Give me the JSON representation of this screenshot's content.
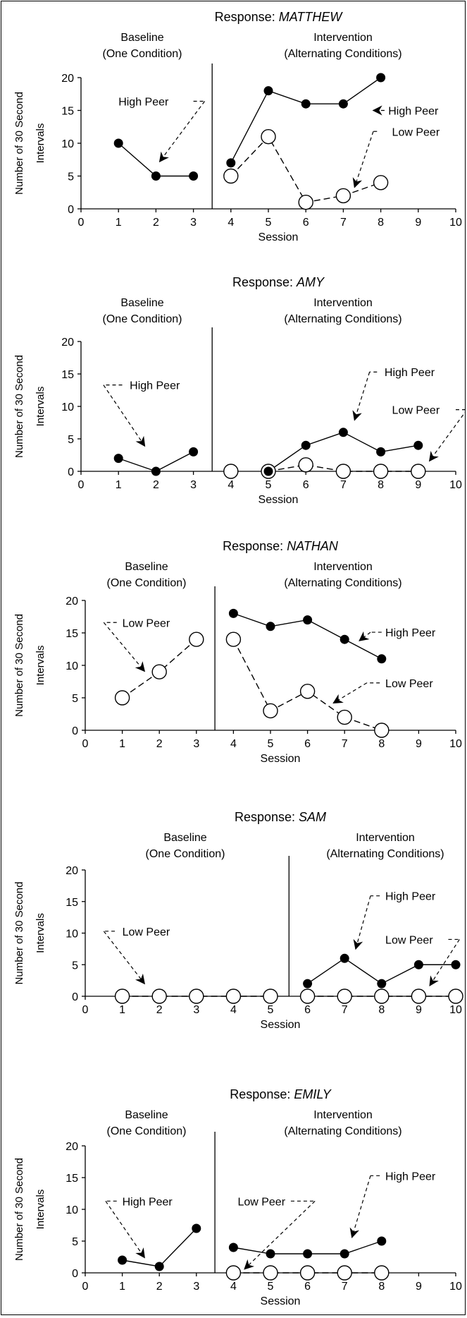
{
  "common": {
    "ylabel_line1": "Number of 30 Second",
    "ylabel_line2": "Intervals",
    "xlabel": "Session",
    "baseline_label": "Baseline",
    "baseline_sublabel": "(One Condition)",
    "intervention_label": "Intervention",
    "intervention_sublabel": "(Alternating Conditions)",
    "response_prefix": "Response: ",
    "y_ticks": [
      0,
      5,
      10,
      15,
      20
    ],
    "x_ticks": [
      "0",
      "1",
      "2",
      "3",
      "4",
      "5",
      "6",
      "7",
      "8",
      "9",
      "10"
    ],
    "ylim": [
      0,
      20
    ],
    "xlim": [
      0,
      10
    ]
  },
  "chart_data": [
    {
      "type": "line",
      "title_name": "MATTHEW",
      "x_tick_labels": [
        "0",
        "1",
        "2",
        "3",
        "4",
        "5",
        "6",
        "7",
        "8",
        "9",
        "10"
      ],
      "phase_line_x": 3.5,
      "series": [
        {
          "name": "High Peer",
          "marker": "filled",
          "line": "solid",
          "segments": [
            {
              "x": [
                1,
                2,
                3
              ],
              "y": [
                10,
                5,
                5
              ]
            },
            {
              "x": [
                4,
                5,
                6,
                7,
                8
              ],
              "y": [
                7,
                18,
                16,
                16,
                20
              ]
            }
          ]
        },
        {
          "name": "Low Peer",
          "marker": "open",
          "line": "dashed",
          "segments": [
            {
              "x": [
                4,
                5,
                6,
                7,
                8
              ],
              "y": [
                5,
                11,
                1,
                2,
                4
              ]
            }
          ]
        }
      ],
      "annotations": [
        {
          "text": "High Peer",
          "tx": 1.0,
          "ty": 16.4,
          "anchor": "start",
          "lead": [
            3.0,
            16.4,
            3.3,
            16.4
          ],
          "arrow": [
            3.3,
            16.4,
            2.1,
            7.2
          ]
        },
        {
          "text": "High Peer",
          "tx": 8.2,
          "ty": 15.0,
          "anchor": "start",
          "lead": [
            8.1,
            15.0,
            7.8,
            15.0
          ],
          "arrow": null,
          "head_at_lead": true
        },
        {
          "text": "Low Peer",
          "tx": 8.3,
          "ty": 11.8,
          "anchor": "start",
          "lead": [
            7.9,
            11.8,
            7.8,
            11.8
          ],
          "arrow": [
            7.8,
            11.8,
            7.3,
            3.3
          ]
        }
      ]
    },
    {
      "type": "line",
      "title_name": "AMY",
      "x_tick_labels": [
        "0",
        "1",
        "2",
        "3",
        "4",
        "5",
        "6",
        "7",
        "8",
        "9",
        "10"
      ],
      "phase_line_x": 3.5,
      "series": [
        {
          "name": "High Peer",
          "marker": "filled",
          "line": "solid",
          "segments": [
            {
              "x": [
                1,
                2,
                3
              ],
              "y": [
                2,
                0,
                3
              ]
            },
            {
              "x": [
                5,
                6,
                7,
                8,
                9
              ],
              "y": [
                0,
                4,
                6,
                3,
                4
              ]
            }
          ]
        },
        {
          "name": "Low Peer",
          "marker": "open",
          "line": "dashed",
          "segments": [
            {
              "x": [
                4
              ],
              "y": [
                0
              ]
            },
            {
              "x": [
                5,
                6,
                7,
                8,
                9
              ],
              "y": [
                0,
                1,
                0,
                0,
                0
              ]
            }
          ]
        }
      ],
      "annotations": [
        {
          "text": "High Peer",
          "tx": 1.3,
          "ty": 13.3,
          "anchor": "start",
          "lead": [
            1.1,
            13.3,
            0.6,
            13.3
          ],
          "arrow": [
            0.6,
            13.3,
            1.7,
            3.9
          ]
        },
        {
          "text": "High Peer",
          "tx": 8.1,
          "ty": 15.3,
          "anchor": "start",
          "lead": [
            7.9,
            15.3,
            7.7,
            15.3
          ],
          "arrow": [
            7.7,
            15.3,
            7.3,
            7.9
          ]
        },
        {
          "text": "Low Peer",
          "tx": 8.3,
          "ty": 9.5,
          "anchor": "start",
          "lead": [
            10.0,
            9.5,
            10.3,
            9.5
          ],
          "arrow": [
            10.3,
            9.5,
            9.3,
            1.6
          ]
        }
      ]
    },
    {
      "type": "line",
      "title_name": "NATHAN",
      "x_tick_labels": [
        "0",
        "1",
        "2",
        "3",
        "4",
        "5",
        "6",
        "7",
        "8",
        "9",
        "10"
      ],
      "phase_line_x": 3.5,
      "series": [
        {
          "name": "High Peer",
          "marker": "filled",
          "line": "solid",
          "segments": [
            {
              "x": [
                4,
                5,
                6,
                7,
                8
              ],
              "y": [
                18,
                16,
                17,
                14,
                11
              ]
            }
          ]
        },
        {
          "name": "Low Peer",
          "marker": "open",
          "line": "dashed",
          "segments": [
            {
              "x": [
                1,
                2,
                3
              ],
              "y": [
                5,
                9,
                14
              ]
            },
            {
              "x": [
                4,
                5,
                6,
                7,
                8
              ],
              "y": [
                14,
                3,
                6,
                2,
                0
              ]
            }
          ]
        }
      ],
      "annotations": [
        {
          "text": "Low Peer",
          "tx": 1.0,
          "ty": 16.6,
          "anchor": "start",
          "lead": [
            0.85,
            16.6,
            0.5,
            16.6
          ],
          "arrow": [
            0.5,
            16.6,
            1.6,
            9.1
          ]
        },
        {
          "text": "High Peer",
          "tx": 8.1,
          "ty": 15.1,
          "anchor": "start",
          "lead": [
            8.0,
            15.1,
            7.7,
            15.1
          ],
          "arrow": [
            7.7,
            15.1,
            7.4,
            13.8
          ]
        },
        {
          "text": "Low Peer",
          "tx": 8.1,
          "ty": 7.3,
          "anchor": "start",
          "lead": [
            7.95,
            7.3,
            7.6,
            7.3
          ],
          "arrow": [
            7.6,
            7.3,
            6.7,
            4.2
          ]
        }
      ]
    },
    {
      "type": "line",
      "title_name": "SAM",
      "x_tick_labels": [
        "0",
        "1",
        "2",
        "3",
        "4",
        "5",
        "6",
        "7",
        "8",
        "9",
        "10"
      ],
      "phase_line_x": 5.5,
      "series": [
        {
          "name": "High Peer",
          "marker": "filled",
          "line": "solid",
          "segments": [
            {
              "x": [
                6,
                7,
                8,
                9,
                10
              ],
              "y": [
                2,
                6,
                2,
                5,
                5
              ]
            }
          ]
        },
        {
          "name": "Low Peer",
          "marker": "open",
          "line": "dashed",
          "segments": [
            {
              "x": [
                1,
                2,
                3,
                4,
                5
              ],
              "y": [
                0,
                0,
                0,
                0,
                0
              ]
            },
            {
              "x": [
                6,
                7,
                8,
                9,
                10
              ],
              "y": [
                0,
                0,
                0,
                0,
                0
              ]
            }
          ]
        }
      ],
      "annotations": [
        {
          "text": "Low Peer",
          "tx": 1.0,
          "ty": 10.3,
          "anchor": "start",
          "lead": [
            0.8,
            10.3,
            0.5,
            10.3
          ],
          "arrow": [
            0.5,
            10.3,
            1.6,
            2.0
          ]
        },
        {
          "text": "High Peer",
          "tx": 8.1,
          "ty": 15.9,
          "anchor": "start",
          "lead": [
            7.95,
            15.9,
            7.7,
            15.9
          ],
          "arrow": [
            7.7,
            15.9,
            7.3,
            7.5
          ]
        },
        {
          "text": "Low Peer",
          "tx": 8.1,
          "ty": 9.0,
          "anchor": "start",
          "lead": [
            9.8,
            9.0,
            10.1,
            9.0
          ],
          "arrow": [
            10.1,
            9.0,
            9.3,
            1.7
          ]
        }
      ]
    },
    {
      "type": "line",
      "title_name": "EMILY",
      "x_tick_labels": [
        "0",
        "1",
        "2",
        "3",
        "4",
        "5",
        "6",
        "7",
        "8",
        "9",
        "10"
      ],
      "phase_line_x": 3.5,
      "series": [
        {
          "name": "High Peer",
          "marker": "filled",
          "line": "solid",
          "segments": [
            {
              "x": [
                1,
                2,
                3
              ],
              "y": [
                2,
                1,
                7
              ]
            },
            {
              "x": [
                4,
                5,
                6,
                7,
                8
              ],
              "y": [
                4,
                3,
                3,
                3,
                5
              ]
            }
          ]
        },
        {
          "name": "Low Peer",
          "marker": "open",
          "line": "dashed",
          "segments": [
            {
              "x": [
                4,
                5,
                6,
                7,
                8
              ],
              "y": [
                0,
                0,
                0,
                0,
                0
              ]
            }
          ]
        }
      ],
      "annotations": [
        {
          "text": "High Peer",
          "tx": 1.0,
          "ty": 11.3,
          "anchor": "start",
          "lead": [
            0.85,
            11.3,
            0.55,
            11.3
          ],
          "arrow": [
            0.55,
            11.3,
            1.6,
            2.4
          ]
        },
        {
          "text": "Low Peer",
          "tx": 5.4,
          "ty": 11.3,
          "anchor": "end",
          "lead": [
            5.55,
            11.3,
            6.2,
            11.3
          ],
          "arrow": [
            6.2,
            11.3,
            4.3,
            0.6
          ]
        },
        {
          "text": "High Peer",
          "tx": 8.1,
          "ty": 15.3,
          "anchor": "start",
          "lead": [
            7.95,
            15.3,
            7.7,
            15.3
          ],
          "arrow": [
            7.7,
            15.3,
            7.2,
            5.6
          ]
        }
      ]
    }
  ]
}
